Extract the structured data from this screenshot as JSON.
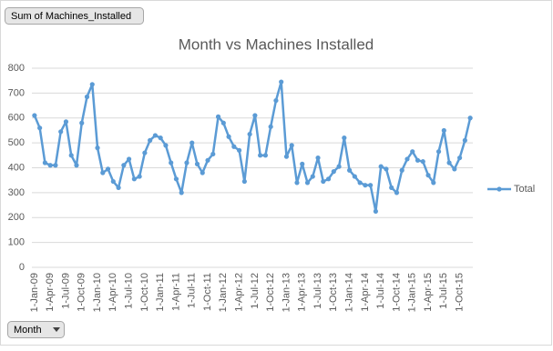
{
  "chart_data": {
    "type": "line",
    "title": "Month vs Machines Installed",
    "categories": [
      "1-Jan-09",
      null,
      null,
      "1-Apr-09",
      null,
      null,
      "1-Jul-09",
      null,
      null,
      "1-Oct-09",
      null,
      null,
      "1-Jan-10",
      null,
      null,
      "1-Apr-10",
      null,
      null,
      "1-Jul-10",
      null,
      null,
      "1-Oct-10",
      null,
      null,
      "1-Jan-11",
      null,
      null,
      "1-Apr-11",
      null,
      null,
      "1-Jul-11",
      null,
      null,
      "1-Oct-11",
      null,
      null,
      "1-Jan-12",
      null,
      null,
      "1-Apr-12",
      null,
      null,
      "1-Jul-12",
      null,
      null,
      "1-Oct-12",
      null,
      null,
      "1-Jan-13",
      null,
      null,
      "1-Apr-13",
      null,
      null,
      "1-Jul-13",
      null,
      null,
      "1-Oct-13",
      null,
      null,
      "1-Jan-14",
      null,
      null,
      "1-Apr-14",
      null,
      null,
      "1-Jul-14",
      null,
      null,
      "1-Oct-14",
      null,
      null,
      "1-Jan-15",
      null,
      null,
      "1-Apr-15",
      null,
      null,
      "1-Jul-15",
      null,
      null,
      "1-Oct-15",
      null,
      null
    ],
    "series": [
      {
        "name": "Total",
        "color": "#5b9bd5",
        "values": [
          610,
          560,
          420,
          410,
          410,
          545,
          585,
          450,
          410,
          580,
          685,
          735,
          480,
          380,
          395,
          345,
          320,
          410,
          435,
          355,
          365,
          460,
          510,
          530,
          520,
          490,
          420,
          355,
          300,
          420,
          500,
          415,
          380,
          430,
          455,
          605,
          580,
          525,
          485,
          470,
          345,
          535,
          610,
          450,
          450,
          565,
          670,
          745,
          445,
          490,
          340,
          415,
          340,
          365,
          440,
          345,
          355,
          385,
          405,
          520,
          390,
          365,
          340,
          330,
          330,
          225,
          405,
          395,
          320,
          300,
          390,
          435,
          465,
          430,
          425,
          370,
          340,
          465,
          550,
          420,
          395,
          440,
          510,
          600
        ]
      }
    ],
    "ylim": [
      0,
      800
    ],
    "yticks": [
      0,
      100,
      200,
      300,
      400,
      500,
      600,
      700,
      800
    ],
    "grid": true,
    "legend": "right"
  },
  "field_buttons": {
    "value_field": "Sum of Machines_Installed",
    "axis_field": "Month"
  }
}
